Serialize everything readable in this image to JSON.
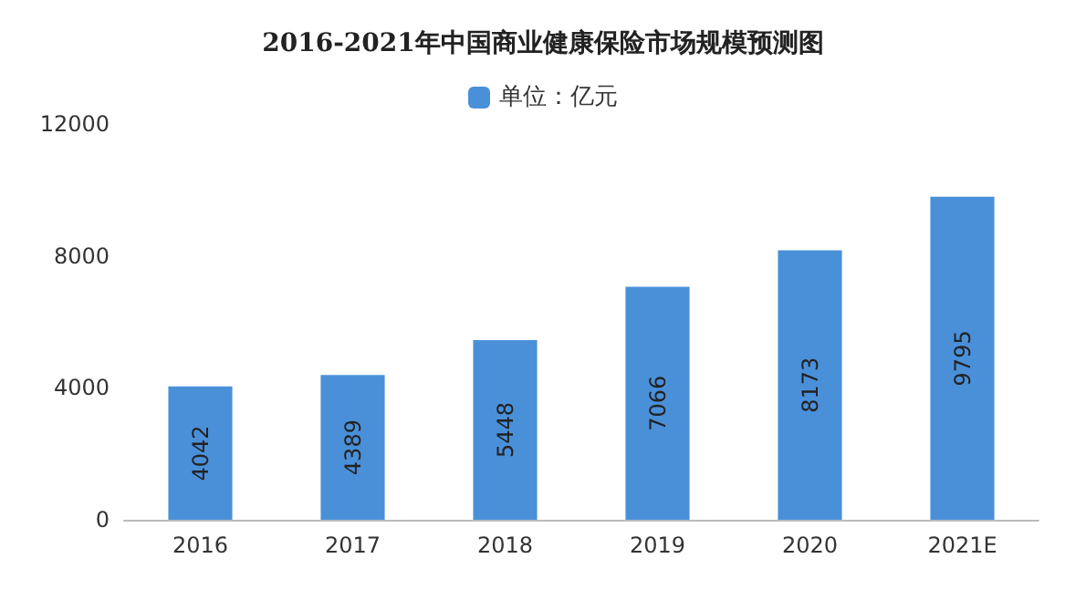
{
  "chart_data": {
    "type": "bar",
    "title": "2016-2021年中国商业健康保险市场规模预测图",
    "categories": [
      "2016",
      "2017",
      "2018",
      "2019",
      "2020",
      "2021E"
    ],
    "series": [
      {
        "name": "单位：亿元",
        "color": "#4a90d9",
        "values": [
          4042,
          4389,
          5448,
          7066,
          8173,
          9795
        ]
      }
    ],
    "ylim": [
      0,
      12000
    ],
    "yticks": [
      0,
      4000,
      8000,
      12000
    ],
    "grid": false,
    "legend": "top",
    "data_labels": true
  }
}
